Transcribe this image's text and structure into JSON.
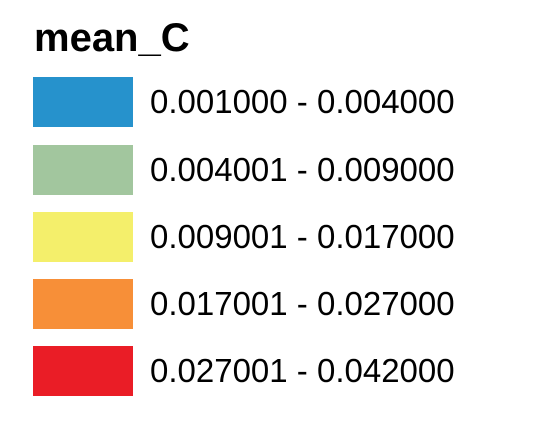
{
  "legend": {
    "title": "mean_C",
    "items": [
      {
        "label": "0.001000 - 0.004000",
        "color": "#2692cc"
      },
      {
        "label": "0.004001 - 0.009000",
        "color": "#a2c69e"
      },
      {
        "label": "0.009001 - 0.017000",
        "color": "#f4ef6b"
      },
      {
        "label": "0.017001 - 0.027000",
        "color": "#f78f38"
      },
      {
        "label": "0.027001 - 0.042000",
        "color": "#ea1d26"
      }
    ]
  }
}
